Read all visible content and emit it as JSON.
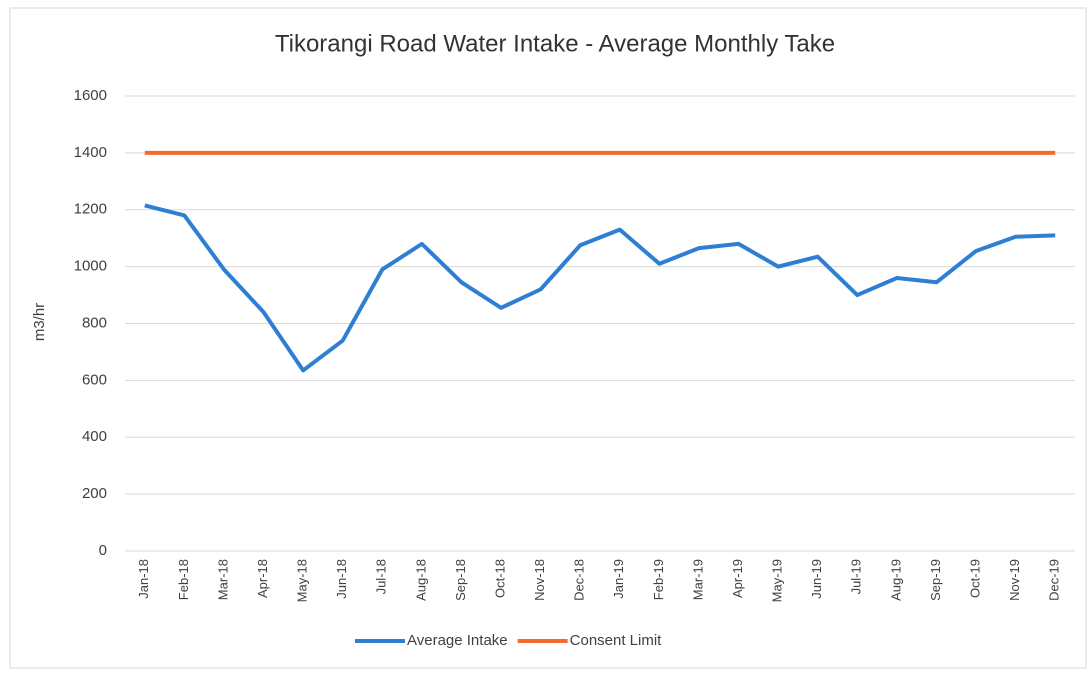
{
  "chart_data": {
    "type": "line",
    "title": "Tikorangi Road Water Intake - Average Monthly Take",
    "y_label": "m3/hr",
    "categories": [
      "Jan-18",
      "Feb-18",
      "Mar-18",
      "Apr-18",
      "May-18",
      "Jun-18",
      "Jul-18",
      "Aug-18",
      "Sep-18",
      "Oct-18",
      "Nov-18",
      "Dec-18",
      "Jan-19",
      "Feb-19",
      "Mar-19",
      "Apr-19",
      "May-19",
      "Jun-19",
      "Jul-19",
      "Aug-19",
      "Sep-19",
      "Oct-19",
      "Nov-19",
      "Dec-19"
    ],
    "series": [
      {
        "name": "Average Intake",
        "color": "#2e7fd3",
        "values": [
          1215,
          1180,
          990,
          840,
          635,
          740,
          990,
          1080,
          945,
          855,
          920,
          1075,
          1130,
          1010,
          1065,
          1080,
          1000,
          1035,
          900,
          960,
          945,
          1055,
          1105,
          1110
        ]
      },
      {
        "name": "Consent Limit",
        "color": "#f26b2a",
        "values": [
          1400,
          1400,
          1400,
          1400,
          1400,
          1400,
          1400,
          1400,
          1400,
          1400,
          1400,
          1400,
          1400,
          1400,
          1400,
          1400,
          1400,
          1400,
          1400,
          1400,
          1400,
          1400,
          1400,
          1400
        ]
      }
    ],
    "ylim": [
      0,
      1600
    ],
    "yticks": [
      0,
      200,
      400,
      600,
      800,
      1000,
      1200,
      1400,
      1600
    ],
    "grid": true,
    "legend": "bottom"
  }
}
